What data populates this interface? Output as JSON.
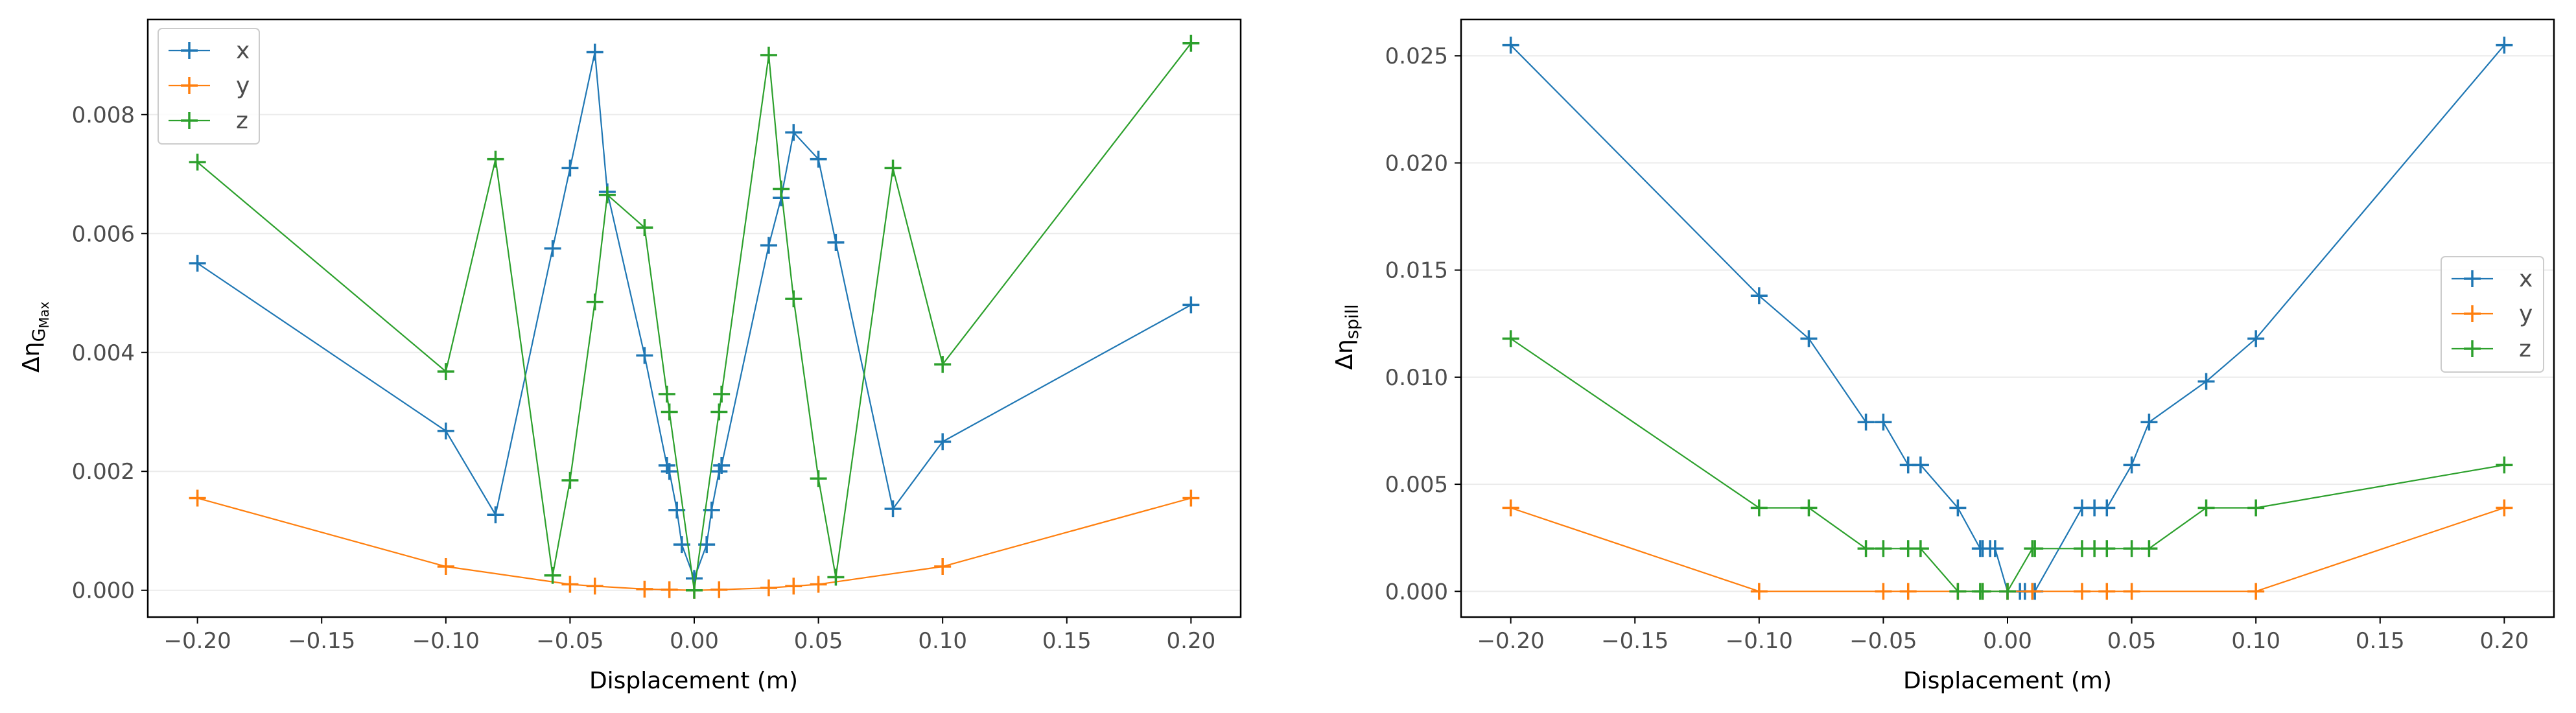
{
  "chart_data": [
    {
      "type": "line",
      "xlabel": "Displacement (m)",
      "ylabel_symbol": "Δη",
      "ylabel_subscript": "G",
      "ylabel_subsubscript": "Max",
      "xlim": [
        -0.22,
        0.22
      ],
      "ylim": [
        -0.00045,
        0.0096
      ],
      "xticks": [
        -0.2,
        -0.15,
        -0.1,
        -0.05,
        0.0,
        0.05,
        0.1,
        0.15,
        0.2
      ],
      "xtick_labels": [
        "−0.20",
        "−0.15",
        "−0.10",
        "−0.05",
        "0.00",
        "0.05",
        "0.10",
        "0.15",
        "0.20"
      ],
      "yticks": [
        0,
        0.002,
        0.004,
        0.006,
        0.008
      ],
      "ytick_labels": [
        "0.000",
        "0.002",
        "0.004",
        "0.006",
        "0.008"
      ],
      "grid": "horizontal",
      "legend_position": "top-left",
      "series": [
        {
          "name": "x",
          "color": "#1f77b4",
          "points": [
            [
              -0.2,
              0.0055
            ],
            [
              -0.1,
              0.00268
            ],
            [
              -0.08,
              0.00127
            ],
            [
              -0.057,
              0.00575
            ],
            [
              -0.05,
              0.0071
            ],
            [
              -0.04,
              0.00905
            ],
            [
              -0.035,
              0.0067
            ],
            [
              -0.02,
              0.00395
            ],
            [
              -0.011,
              0.0021
            ],
            [
              -0.01,
              0.002
            ],
            [
              -0.007,
              0.00135
            ],
            [
              -0.005,
              0.00077
            ],
            [
              0,
              0.0002
            ],
            [
              0.005,
              0.00077
            ],
            [
              0.007,
              0.00135
            ],
            [
              0.01,
              0.002
            ],
            [
              0.011,
              0.0021
            ],
            [
              0.03,
              0.0058
            ],
            [
              0.035,
              0.0066
            ],
            [
              0.04,
              0.0077
            ],
            [
              0.05,
              0.00725
            ],
            [
              0.057,
              0.00585
            ],
            [
              0.08,
              0.00137
            ],
            [
              0.1,
              0.0025
            ],
            [
              0.2,
              0.0048
            ]
          ]
        },
        {
          "name": "y",
          "color": "#ff7f0e",
          "points": [
            [
              -0.2,
              0.00155
            ],
            [
              -0.1,
              0.0004
            ],
            [
              -0.05,
              0.0001
            ],
            [
              -0.04,
              7e-05
            ],
            [
              -0.02,
              2e-05
            ],
            [
              -0.01,
              1e-05
            ],
            [
              0,
              0.0
            ],
            [
              0.01,
              1e-05
            ],
            [
              0.03,
              4e-05
            ],
            [
              0.04,
              7e-05
            ],
            [
              0.05,
              0.0001
            ],
            [
              0.1,
              0.0004
            ],
            [
              0.2,
              0.00155
            ]
          ]
        },
        {
          "name": "z",
          "color": "#2ca02c",
          "points": [
            [
              -0.2,
              0.0072
            ],
            [
              -0.1,
              0.00368
            ],
            [
              -0.08,
              0.00725
            ],
            [
              -0.057,
              0.00025
            ],
            [
              -0.05,
              0.00185
            ],
            [
              -0.04,
              0.00485
            ],
            [
              -0.035,
              0.00665
            ],
            [
              -0.02,
              0.0061
            ],
            [
              -0.011,
              0.0033
            ],
            [
              -0.01,
              0.003
            ],
            [
              0,
              0.0
            ],
            [
              0.01,
              0.003
            ],
            [
              0.011,
              0.0033
            ],
            [
              0.03,
              0.009
            ],
            [
              0.035,
              0.00675
            ],
            [
              0.04,
              0.0049
            ],
            [
              0.05,
              0.00188
            ],
            [
              0.057,
              0.00022
            ],
            [
              0.08,
              0.0071
            ],
            [
              0.1,
              0.0038
            ],
            [
              0.2,
              0.0092
            ]
          ]
        }
      ]
    },
    {
      "type": "line",
      "xlabel": "Displacement (m)",
      "ylabel_symbol": "Δη",
      "ylabel_subscript": "spill",
      "ylabel_subsubscript": "",
      "xlim": [
        -0.22,
        0.22
      ],
      "ylim": [
        -0.0012,
        0.0267
      ],
      "xticks": [
        -0.2,
        -0.15,
        -0.1,
        -0.05,
        0.0,
        0.05,
        0.1,
        0.15,
        0.2
      ],
      "xtick_labels": [
        "−0.20",
        "−0.15",
        "−0.10",
        "−0.05",
        "0.00",
        "0.05",
        "0.10",
        "0.15",
        "0.20"
      ],
      "yticks": [
        0,
        0.005,
        0.01,
        0.015,
        0.02,
        0.025
      ],
      "ytick_labels": [
        "0.000",
        "0.005",
        "0.010",
        "0.015",
        "0.020",
        "0.025"
      ],
      "grid": "horizontal",
      "legend_position": "center-right",
      "series": [
        {
          "name": "x",
          "color": "#1f77b4",
          "points": [
            [
              -0.2,
              0.0255
            ],
            [
              -0.1,
              0.0138
            ],
            [
              -0.08,
              0.0118
            ],
            [
              -0.057,
              0.0079
            ],
            [
              -0.05,
              0.0079
            ],
            [
              -0.04,
              0.0059
            ],
            [
              -0.035,
              0.0059
            ],
            [
              -0.02,
              0.0039
            ],
            [
              -0.011,
              0.002
            ],
            [
              -0.01,
              0.002
            ],
            [
              -0.007,
              0.002
            ],
            [
              -0.005,
              0.002
            ],
            [
              0,
              0.0
            ],
            [
              0.005,
              0.0
            ],
            [
              0.007,
              0.0
            ],
            [
              0.01,
              0.0
            ],
            [
              0.011,
              0.0
            ],
            [
              0.03,
              0.0039
            ],
            [
              0.035,
              0.0039
            ],
            [
              0.04,
              0.0039
            ],
            [
              0.05,
              0.0059
            ],
            [
              0.057,
              0.0079
            ],
            [
              0.08,
              0.0098
            ],
            [
              0.1,
              0.0118
            ],
            [
              0.2,
              0.0255
            ]
          ]
        },
        {
          "name": "y",
          "color": "#ff7f0e",
          "points": [
            [
              -0.2,
              0.0039
            ],
            [
              -0.1,
              0.0
            ],
            [
              -0.05,
              0.0
            ],
            [
              -0.04,
              0.0
            ],
            [
              -0.02,
              0.0
            ],
            [
              -0.01,
              0.0
            ],
            [
              0,
              0.0
            ],
            [
              0.01,
              0.0
            ],
            [
              0.03,
              0.0
            ],
            [
              0.04,
              0.0
            ],
            [
              0.05,
              0.0
            ],
            [
              0.1,
              0.0
            ],
            [
              0.2,
              0.0039
            ]
          ]
        },
        {
          "name": "z",
          "color": "#2ca02c",
          "points": [
            [
              -0.2,
              0.0118
            ],
            [
              -0.1,
              0.0039
            ],
            [
              -0.08,
              0.0039
            ],
            [
              -0.057,
              0.002
            ],
            [
              -0.05,
              0.002
            ],
            [
              -0.04,
              0.002
            ],
            [
              -0.035,
              0.002
            ],
            [
              -0.02,
              0.0
            ],
            [
              -0.011,
              0.0
            ],
            [
              -0.01,
              0.0
            ],
            [
              0,
              0.0
            ],
            [
              0.01,
              0.002
            ],
            [
              0.011,
              0.002
            ],
            [
              0.03,
              0.002
            ],
            [
              0.035,
              0.002
            ],
            [
              0.04,
              0.002
            ],
            [
              0.05,
              0.002
            ],
            [
              0.057,
              0.002
            ],
            [
              0.08,
              0.0039
            ],
            [
              0.1,
              0.0039
            ],
            [
              0.2,
              0.0059
            ]
          ]
        }
      ]
    }
  ]
}
